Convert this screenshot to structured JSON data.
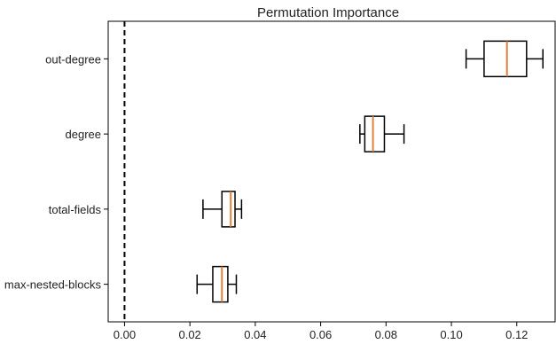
{
  "chart_data": {
    "type": "boxplot",
    "title": "Permutation Importance",
    "xlabel": "",
    "ylabel": "",
    "xlim": [
      -0.005,
      0.132
    ],
    "x_ticks": [
      0.0,
      0.02,
      0.04,
      0.06,
      0.08,
      0.1,
      0.12
    ],
    "x_tick_labels": [
      "0.00",
      "0.02",
      "0.04",
      "0.06",
      "0.08",
      "0.10",
      "0.12"
    ],
    "grid": false,
    "reference_line": {
      "x": 0.0,
      "style": "dashed"
    },
    "colors": {
      "box": "#000000",
      "median": "#e0813a",
      "reference": "#000000"
    },
    "categories": [
      "out-degree",
      "degree",
      "total-fields",
      "max-nested-blocks"
    ],
    "boxes": [
      {
        "label": "out-degree",
        "whisker_low": 0.1045,
        "q1": 0.11,
        "median": 0.117,
        "q3": 0.123,
        "whisker_high": 0.128
      },
      {
        "label": "degree",
        "whisker_low": 0.072,
        "q1": 0.0735,
        "median": 0.076,
        "q3": 0.0795,
        "whisker_high": 0.0855
      },
      {
        "label": "total-fields",
        "whisker_low": 0.024,
        "q1": 0.0298,
        "median": 0.0325,
        "q3": 0.0338,
        "whisker_high": 0.0358
      },
      {
        "label": "max-nested-blocks",
        "whisker_low": 0.0222,
        "q1": 0.027,
        "median": 0.0298,
        "q3": 0.0316,
        "whisker_high": 0.0342
      }
    ]
  }
}
